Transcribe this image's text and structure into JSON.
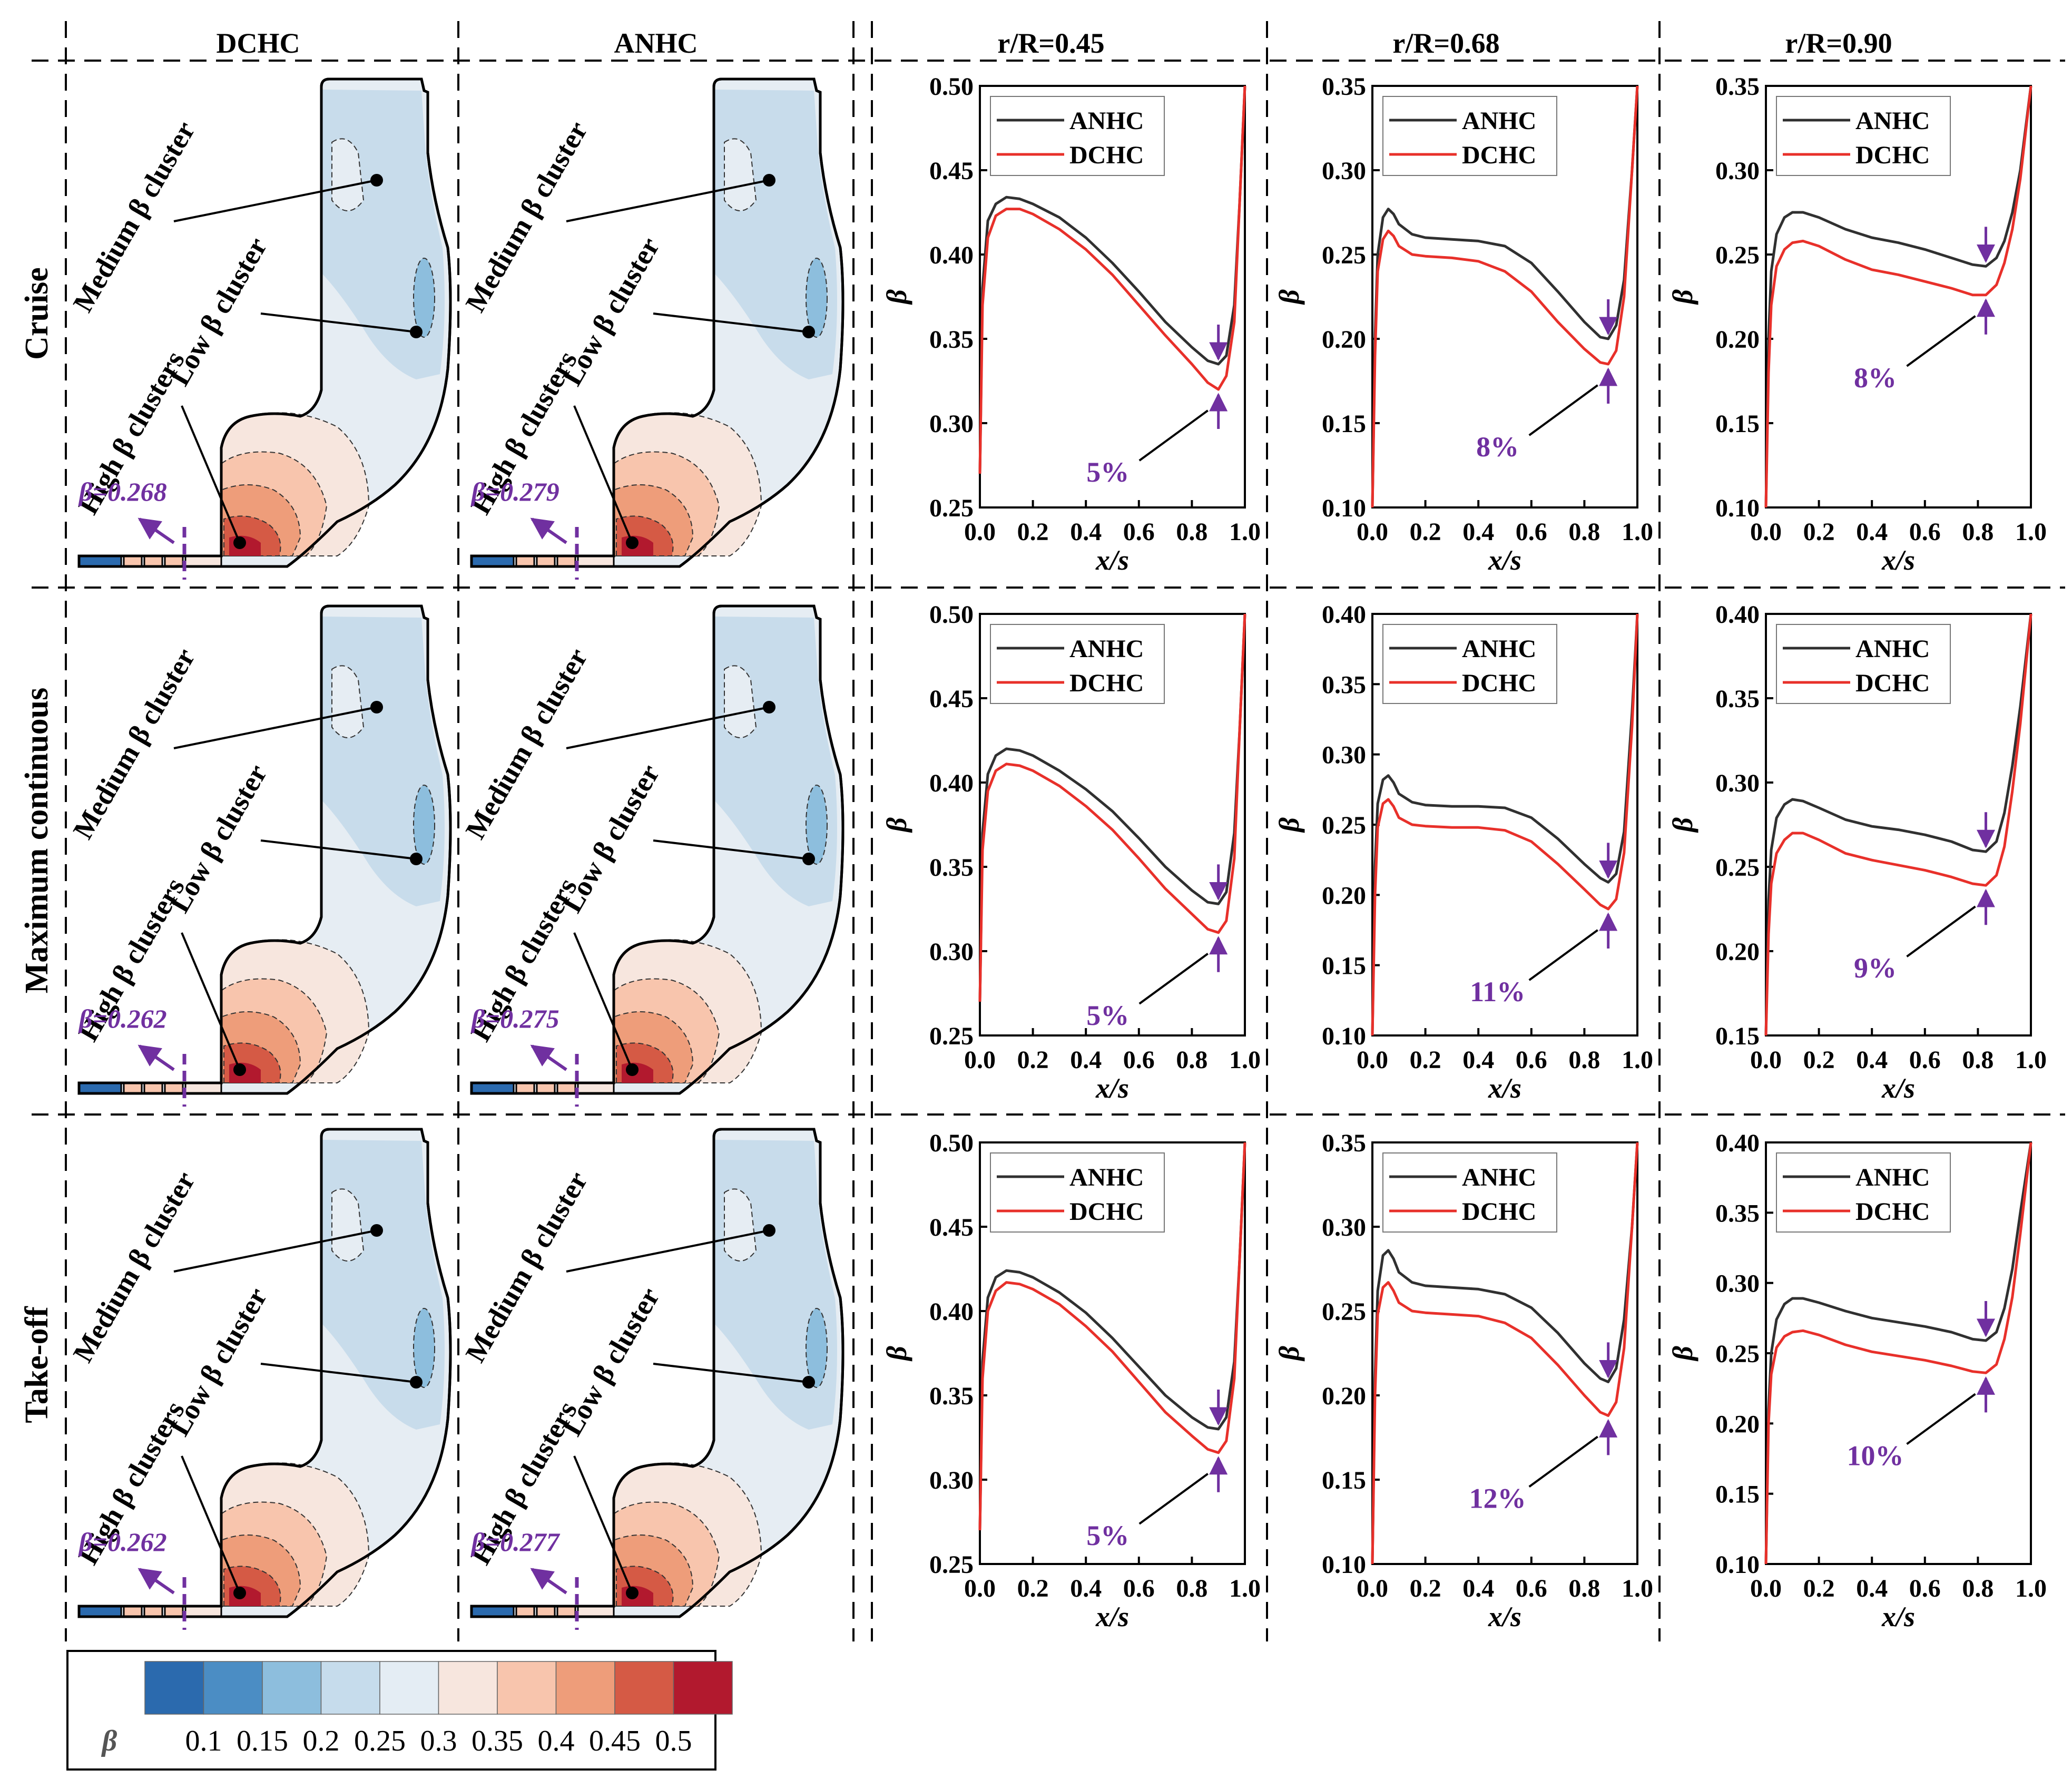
{
  "figure": {
    "column_titles": {
      "dchc": "DCHC",
      "anhc": "ANHC",
      "r45": "r/R=0.45",
      "r68": "r/R=0.68",
      "r90": "r/R=0.90"
    },
    "row_titles": [
      "Cruise",
      "Maximum continuous",
      "Take-off"
    ],
    "contour_labels": {
      "medium": "Medium β cluster",
      "low": "Low β cluster",
      "high": "High β clusters"
    },
    "contour_beta_values": [
      [
        "β=0.268",
        "β=0.279"
      ],
      [
        "β=0.262",
        "β=0.275"
      ],
      [
        "β=0.262",
        "β=0.277"
      ]
    ],
    "colorbar": {
      "label": "β",
      "ticks": [
        "0.1",
        "0.15",
        "0.2",
        "0.25",
        "0.3",
        "0.35",
        "0.4",
        "0.45",
        "0.5"
      ],
      "colors": [
        "#2b6aae",
        "#4b8dc4",
        "#8dbedd",
        "#c6dcec",
        "#e4edf4",
        "#f7e6de",
        "#f8c5ad",
        "#ee9d7a",
        "#d55a45",
        "#b2192e"
      ]
    },
    "legend_colors": {
      "ANHC": "#303030",
      "DCHC": "#e8302a",
      "annotation": "#7030a0"
    }
  },
  "chart_data": [
    {
      "type": "line",
      "row": "Cruise",
      "position": "r/R=0.45",
      "xlabel": "x/s",
      "ylabel": "β",
      "xlim": [
        0,
        1
      ],
      "ylim": [
        0.25,
        0.5
      ],
      "xticks": [
        "0.0",
        "0.2",
        "0.4",
        "0.6",
        "0.8",
        "1.0"
      ],
      "yticks": [
        "0.25",
        "0.30",
        "0.35",
        "0.40",
        "0.45",
        "0.50"
      ],
      "x": [
        0,
        0.01,
        0.03,
        0.06,
        0.1,
        0.15,
        0.2,
        0.3,
        0.4,
        0.5,
        0.6,
        0.7,
        0.8,
        0.86,
        0.9,
        0.93,
        0.96,
        0.98,
        1.0
      ],
      "series": [
        {
          "name": "ANHC",
          "values": [
            0.27,
            0.38,
            0.42,
            0.43,
            0.434,
            0.433,
            0.43,
            0.422,
            0.41,
            0.395,
            0.378,
            0.36,
            0.345,
            0.337,
            0.335,
            0.34,
            0.37,
            0.43,
            0.5
          ]
        },
        {
          "name": "DCHC",
          "values": [
            0.27,
            0.37,
            0.41,
            0.423,
            0.427,
            0.427,
            0.424,
            0.415,
            0.403,
            0.388,
            0.37,
            0.352,
            0.335,
            0.324,
            0.32,
            0.328,
            0.36,
            0.43,
            0.5
          ]
        }
      ],
      "annotation": {
        "text": "5%",
        "x": 0.9
      }
    },
    {
      "type": "line",
      "row": "Cruise",
      "position": "r/R=0.68",
      "xlabel": "x/s",
      "ylabel": "β",
      "xlim": [
        0,
        1
      ],
      "ylim": [
        0.1,
        0.35
      ],
      "xticks": [
        "0.0",
        "0.2",
        "0.4",
        "0.6",
        "0.8",
        "1.0"
      ],
      "yticks": [
        "0.10",
        "0.15",
        "0.20",
        "0.25",
        "0.30",
        "0.35"
      ],
      "x": [
        0,
        0.01,
        0.02,
        0.04,
        0.06,
        0.08,
        0.1,
        0.15,
        0.2,
        0.3,
        0.4,
        0.5,
        0.6,
        0.7,
        0.8,
        0.86,
        0.89,
        0.92,
        0.95,
        0.98,
        1.0
      ],
      "series": [
        {
          "name": "ANHC",
          "values": [
            0.1,
            0.2,
            0.25,
            0.272,
            0.277,
            0.274,
            0.268,
            0.262,
            0.26,
            0.259,
            0.258,
            0.255,
            0.245,
            0.228,
            0.21,
            0.201,
            0.2,
            0.208,
            0.235,
            0.3,
            0.35
          ]
        },
        {
          "name": "DCHC",
          "values": [
            0.1,
            0.19,
            0.24,
            0.259,
            0.264,
            0.261,
            0.255,
            0.25,
            0.249,
            0.248,
            0.246,
            0.24,
            0.228,
            0.21,
            0.194,
            0.186,
            0.185,
            0.193,
            0.225,
            0.3,
            0.35
          ]
        }
      ],
      "annotation": {
        "text": "8%",
        "x": 0.89
      }
    },
    {
      "type": "line",
      "row": "Cruise",
      "position": "r/R=0.90",
      "xlabel": "x/s",
      "ylabel": "β",
      "xlim": [
        0,
        1
      ],
      "ylim": [
        0.1,
        0.35
      ],
      "xticks": [
        "0.0",
        "0.2",
        "0.4",
        "0.6",
        "0.8",
        "1.0"
      ],
      "yticks": [
        "0.10",
        "0.15",
        "0.20",
        "0.25",
        "0.30",
        "0.35"
      ],
      "x": [
        0,
        0.01,
        0.02,
        0.04,
        0.07,
        0.1,
        0.14,
        0.2,
        0.3,
        0.4,
        0.5,
        0.6,
        0.7,
        0.78,
        0.83,
        0.87,
        0.9,
        0.93,
        0.96,
        1.0
      ],
      "series": [
        {
          "name": "ANHC",
          "values": [
            0.1,
            0.2,
            0.24,
            0.262,
            0.272,
            0.275,
            0.275,
            0.272,
            0.265,
            0.26,
            0.257,
            0.253,
            0.248,
            0.244,
            0.243,
            0.248,
            0.258,
            0.275,
            0.3,
            0.35
          ]
        },
        {
          "name": "DCHC",
          "values": [
            0.1,
            0.18,
            0.22,
            0.243,
            0.253,
            0.257,
            0.258,
            0.255,
            0.247,
            0.241,
            0.238,
            0.234,
            0.23,
            0.226,
            0.226,
            0.232,
            0.245,
            0.265,
            0.295,
            0.35
          ]
        }
      ],
      "annotation": {
        "text": "8%",
        "x": 0.83
      }
    },
    {
      "type": "line",
      "row": "Maximum continuous",
      "position": "r/R=0.45",
      "xlabel": "x/s",
      "ylabel": "β",
      "xlim": [
        0,
        1
      ],
      "ylim": [
        0.25,
        0.5
      ],
      "xticks": [
        "0.0",
        "0.2",
        "0.4",
        "0.6",
        "0.8",
        "1.0"
      ],
      "yticks": [
        "0.25",
        "0.30",
        "0.35",
        "0.40",
        "0.45",
        "0.50"
      ],
      "x": [
        0,
        0.01,
        0.03,
        0.06,
        0.1,
        0.15,
        0.2,
        0.3,
        0.4,
        0.5,
        0.6,
        0.7,
        0.8,
        0.86,
        0.9,
        0.93,
        0.96,
        0.98,
        1.0
      ],
      "series": [
        {
          "name": "ANHC",
          "values": [
            0.27,
            0.37,
            0.405,
            0.416,
            0.42,
            0.419,
            0.416,
            0.407,
            0.396,
            0.383,
            0.367,
            0.35,
            0.336,
            0.329,
            0.328,
            0.335,
            0.37,
            0.43,
            0.5
          ]
        },
        {
          "name": "DCHC",
          "values": [
            0.27,
            0.36,
            0.395,
            0.407,
            0.411,
            0.41,
            0.407,
            0.398,
            0.386,
            0.372,
            0.355,
            0.337,
            0.322,
            0.313,
            0.311,
            0.318,
            0.355,
            0.43,
            0.5
          ]
        }
      ],
      "annotation": {
        "text": "5%",
        "x": 0.9
      }
    },
    {
      "type": "line",
      "row": "Maximum continuous",
      "position": "r/R=0.68",
      "xlabel": "x/s",
      "ylabel": "β",
      "xlim": [
        0,
        1
      ],
      "ylim": [
        0.1,
        0.4
      ],
      "xticks": [
        "0.0",
        "0.2",
        "0.4",
        "0.6",
        "0.8",
        "1.0"
      ],
      "yticks": [
        "0.10",
        "0.15",
        "0.20",
        "0.25",
        "0.30",
        "0.35",
        "0.40"
      ],
      "x": [
        0,
        0.01,
        0.02,
        0.04,
        0.06,
        0.08,
        0.1,
        0.15,
        0.2,
        0.3,
        0.4,
        0.5,
        0.6,
        0.7,
        0.8,
        0.86,
        0.89,
        0.92,
        0.95,
        0.98,
        1.0
      ],
      "series": [
        {
          "name": "ANHC",
          "values": [
            0.1,
            0.22,
            0.265,
            0.282,
            0.285,
            0.28,
            0.272,
            0.266,
            0.264,
            0.263,
            0.263,
            0.262,
            0.255,
            0.24,
            0.222,
            0.212,
            0.209,
            0.215,
            0.245,
            0.33,
            0.4
          ]
        },
        {
          "name": "DCHC",
          "values": [
            0.1,
            0.2,
            0.248,
            0.265,
            0.268,
            0.263,
            0.255,
            0.25,
            0.249,
            0.248,
            0.248,
            0.246,
            0.238,
            0.222,
            0.204,
            0.193,
            0.19,
            0.197,
            0.23,
            0.32,
            0.4
          ]
        }
      ],
      "annotation": {
        "text": "11%",
        "x": 0.89
      }
    },
    {
      "type": "line",
      "row": "Maximum continuous",
      "position": "r/R=0.90",
      "xlabel": "x/s",
      "ylabel": "β",
      "xlim": [
        0,
        1
      ],
      "ylim": [
        0.15,
        0.4
      ],
      "xticks": [
        "0.0",
        "0.2",
        "0.4",
        "0.6",
        "0.8",
        "1.0"
      ],
      "yticks": [
        "0.15",
        "0.20",
        "0.25",
        "0.30",
        "0.35",
        "0.40"
      ],
      "x": [
        0,
        0.01,
        0.02,
        0.04,
        0.07,
        0.1,
        0.14,
        0.2,
        0.3,
        0.4,
        0.5,
        0.6,
        0.7,
        0.78,
        0.83,
        0.87,
        0.9,
        0.93,
        0.96,
        1.0
      ],
      "series": [
        {
          "name": "ANHC",
          "values": [
            0.15,
            0.23,
            0.26,
            0.279,
            0.287,
            0.29,
            0.289,
            0.285,
            0.278,
            0.274,
            0.272,
            0.269,
            0.265,
            0.26,
            0.259,
            0.265,
            0.282,
            0.31,
            0.345,
            0.4
          ]
        },
        {
          "name": "DCHC",
          "values": [
            0.15,
            0.21,
            0.24,
            0.258,
            0.266,
            0.27,
            0.27,
            0.266,
            0.258,
            0.254,
            0.251,
            0.248,
            0.244,
            0.24,
            0.239,
            0.245,
            0.262,
            0.295,
            0.335,
            0.4
          ]
        }
      ],
      "annotation": {
        "text": "9%",
        "x": 0.83
      }
    },
    {
      "type": "line",
      "row": "Take-off",
      "position": "r/R=0.45",
      "xlabel": "x/s",
      "ylabel": "β",
      "xlim": [
        0,
        1
      ],
      "ylim": [
        0.25,
        0.5
      ],
      "xticks": [
        "0.0",
        "0.2",
        "0.4",
        "0.6",
        "0.8",
        "1.0"
      ],
      "yticks": [
        "0.25",
        "0.30",
        "0.35",
        "0.40",
        "0.45",
        "0.50"
      ],
      "x": [
        0,
        0.01,
        0.03,
        0.06,
        0.1,
        0.15,
        0.2,
        0.3,
        0.4,
        0.5,
        0.6,
        0.7,
        0.8,
        0.86,
        0.9,
        0.93,
        0.96,
        0.98,
        1.0
      ],
      "series": [
        {
          "name": "ANHC",
          "values": [
            0.27,
            0.37,
            0.408,
            0.42,
            0.424,
            0.423,
            0.42,
            0.411,
            0.399,
            0.384,
            0.367,
            0.35,
            0.337,
            0.331,
            0.33,
            0.337,
            0.37,
            0.43,
            0.5
          ]
        },
        {
          "name": "DCHC",
          "values": [
            0.27,
            0.36,
            0.4,
            0.412,
            0.417,
            0.416,
            0.413,
            0.404,
            0.391,
            0.376,
            0.358,
            0.34,
            0.326,
            0.318,
            0.316,
            0.323,
            0.36,
            0.43,
            0.5
          ]
        }
      ],
      "annotation": {
        "text": "5%",
        "x": 0.9
      }
    },
    {
      "type": "line",
      "row": "Take-off",
      "position": "r/R=0.68",
      "xlabel": "x/s",
      "ylabel": "β",
      "xlim": [
        0,
        1
      ],
      "ylim": [
        0.1,
        0.35
      ],
      "xticks": [
        "0.0",
        "0.2",
        "0.4",
        "0.6",
        "0.8",
        "1.0"
      ],
      "yticks": [
        "0.10",
        "0.15",
        "0.20",
        "0.25",
        "0.30",
        "0.35"
      ],
      "x": [
        0,
        0.01,
        0.02,
        0.04,
        0.06,
        0.08,
        0.1,
        0.15,
        0.2,
        0.3,
        0.4,
        0.5,
        0.6,
        0.7,
        0.8,
        0.86,
        0.89,
        0.92,
        0.95,
        0.98,
        1.0
      ],
      "series": [
        {
          "name": "ANHC",
          "values": [
            0.1,
            0.21,
            0.262,
            0.283,
            0.286,
            0.281,
            0.273,
            0.267,
            0.265,
            0.264,
            0.263,
            0.26,
            0.252,
            0.237,
            0.219,
            0.21,
            0.208,
            0.216,
            0.245,
            0.3,
            0.35
          ]
        },
        {
          "name": "DCHC",
          "values": [
            0.1,
            0.2,
            0.248,
            0.264,
            0.267,
            0.262,
            0.255,
            0.25,
            0.249,
            0.248,
            0.247,
            0.243,
            0.234,
            0.218,
            0.2,
            0.19,
            0.188,
            0.196,
            0.228,
            0.3,
            0.35
          ]
        }
      ],
      "annotation": {
        "text": "12%",
        "x": 0.89
      }
    },
    {
      "type": "line",
      "row": "Take-off",
      "position": "r/R=0.90",
      "xlabel": "x/s",
      "ylabel": "β",
      "xlim": [
        0,
        1
      ],
      "ylim": [
        0.1,
        0.4
      ],
      "xticks": [
        "0.0",
        "0.2",
        "0.4",
        "0.6",
        "0.8",
        "1.0"
      ],
      "yticks": [
        "0.10",
        "0.15",
        "0.20",
        "0.25",
        "0.30",
        "0.35",
        "0.40"
      ],
      "x": [
        0,
        0.01,
        0.02,
        0.04,
        0.07,
        0.1,
        0.14,
        0.2,
        0.3,
        0.4,
        0.5,
        0.6,
        0.7,
        0.78,
        0.83,
        0.87,
        0.9,
        0.93,
        0.96,
        1.0
      ],
      "series": [
        {
          "name": "ANHC",
          "values": [
            0.1,
            0.21,
            0.25,
            0.274,
            0.285,
            0.289,
            0.289,
            0.286,
            0.28,
            0.275,
            0.272,
            0.269,
            0.265,
            0.26,
            0.259,
            0.265,
            0.282,
            0.31,
            0.35,
            0.4
          ]
        },
        {
          "name": "DCHC",
          "values": [
            0.1,
            0.2,
            0.235,
            0.254,
            0.262,
            0.265,
            0.266,
            0.263,
            0.256,
            0.251,
            0.248,
            0.245,
            0.241,
            0.237,
            0.236,
            0.242,
            0.26,
            0.29,
            0.335,
            0.4
          ]
        }
      ],
      "annotation": {
        "text": "10%",
        "x": 0.83
      }
    }
  ]
}
